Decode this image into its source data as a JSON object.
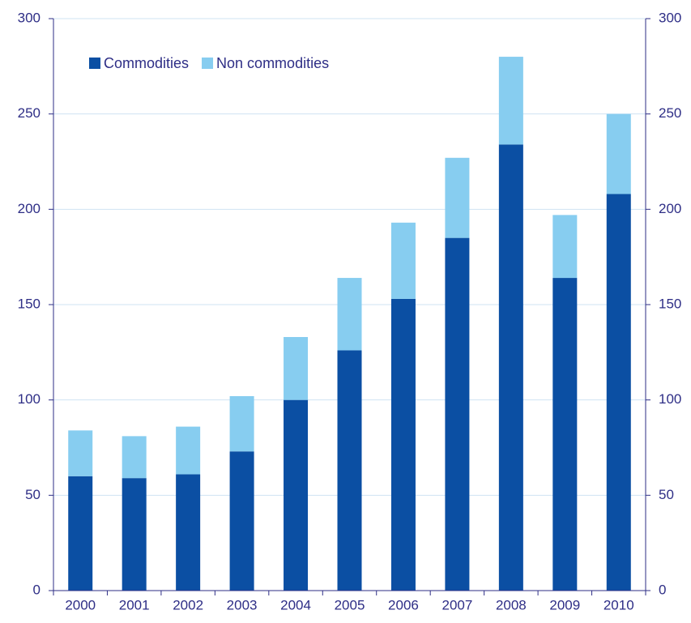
{
  "chart_data": {
    "type": "stacked_bar",
    "categories": [
      "2000",
      "2001",
      "2002",
      "2003",
      "2004",
      "2005",
      "2006",
      "2007",
      "2008",
      "2009",
      "2010"
    ],
    "series": [
      {
        "name": "Commodities",
        "color": "#0b4fa3",
        "values": [
          60,
          59,
          61,
          73,
          100,
          126,
          153,
          185,
          234,
          164,
          208
        ]
      },
      {
        "name": "Non commodities",
        "color": "#87cdf0",
        "values": [
          24,
          22,
          25,
          29,
          33,
          38,
          40,
          42,
          46,
          33,
          42
        ]
      }
    ],
    "ylim": [
      0,
      300
    ],
    "yticks": [
      0,
      50,
      100,
      150,
      200,
      250,
      300
    ],
    "y2lim": [
      0,
      300
    ],
    "y2ticks": [
      0,
      50,
      100,
      150,
      200,
      250,
      300
    ],
    "grid": true,
    "legend": "top-left"
  }
}
